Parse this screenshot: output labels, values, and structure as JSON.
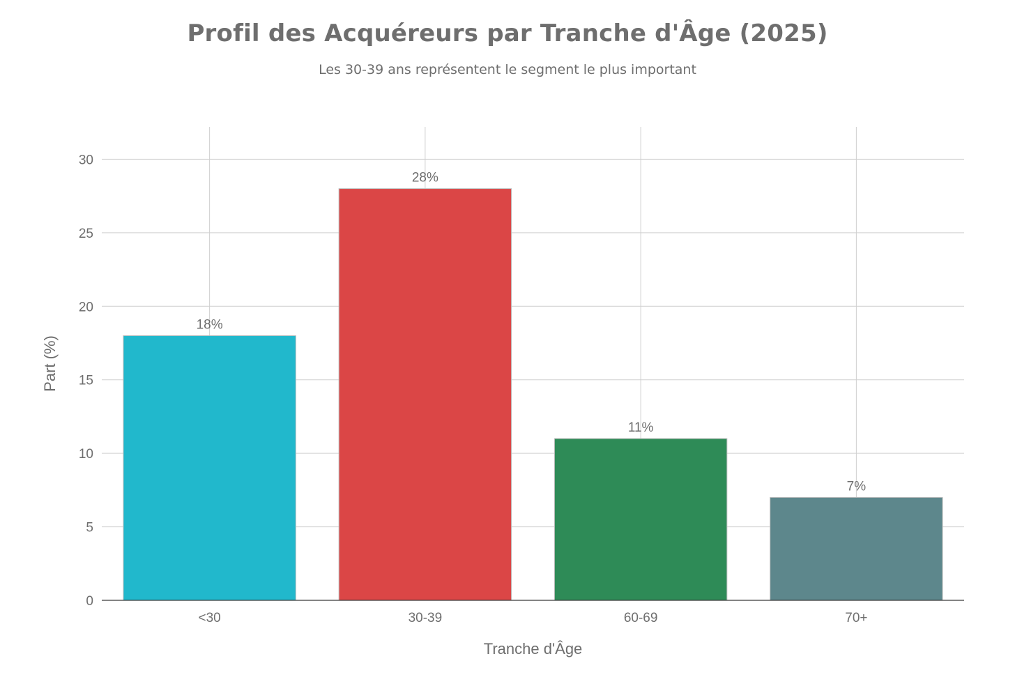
{
  "chart_data": {
    "type": "bar",
    "title": "Profil des Acquéreurs par Tranche d'Âge (2025)",
    "subtitle": "Les 30-39 ans représentent le segment le plus important",
    "xlabel": "Tranche d'Âge",
    "ylabel": "Part (%)",
    "categories": [
      "<30",
      "30-39",
      "60-69",
      "70+"
    ],
    "values": [
      18,
      28,
      11,
      7
    ],
    "data_labels": [
      "18%",
      "28%",
      "11%",
      "7%"
    ],
    "colors": [
      "#21b8cc",
      "#db4646",
      "#2e8b57",
      "#5d878c"
    ],
    "ylim": [
      0,
      32.2
    ],
    "yticks": [
      0,
      5,
      10,
      15,
      20,
      25,
      30
    ],
    "grid": true,
    "legend": "none"
  }
}
